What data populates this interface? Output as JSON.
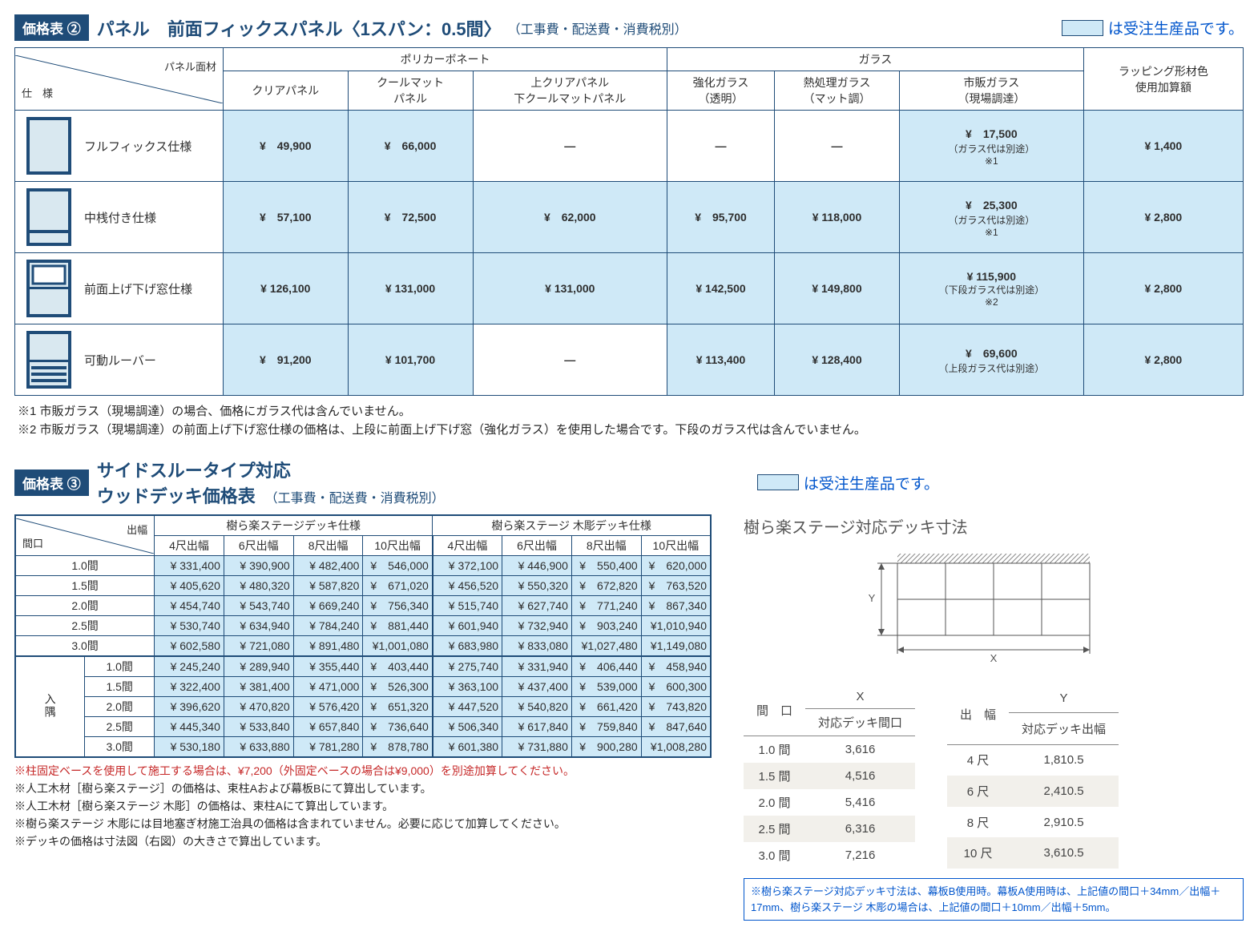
{
  "colors": {
    "primary": "#1f4c78",
    "bto_bg": "#cfe9f7",
    "link_blue": "#0055cc",
    "red": "#c62828",
    "legend_text": "は受注生産品です。"
  },
  "t1": {
    "badge": "価格表 ②",
    "title": "パネル　前面フィックスパネル〈1スパン：0.5間〉",
    "sub": "（工事費・配送費・消費税別）",
    "corner_top": "パネル面材",
    "corner_bottom": "仕　様",
    "group1": "ポリカーボネート",
    "group2": "ガラス",
    "wrap_col": "ラッピング形材色\n使用加算額",
    "cols": [
      "クリアパネル",
      "クールマット\nパネル",
      "上クリアパネル\n下クールマットパネル",
      "強化ガラス\n（透明）",
      "熱処理ガラス\n（マット調）",
      "市販ガラス\n（現場調達）"
    ],
    "rows": [
      {
        "spec": "フルフィックス仕様",
        "icon": "full",
        "cells": [
          "¥　49,900",
          "¥　66,000",
          "—",
          "—",
          "—",
          {
            "main": "¥　17,500",
            "sub": "（ガラス代は別途）\n※1"
          },
          "¥ 1,400"
        ],
        "bto": [
          true,
          true,
          false,
          false,
          false,
          true,
          true
        ]
      },
      {
        "spec": "中桟付き仕様",
        "icon": "midrail",
        "cells": [
          "¥　57,100",
          "¥　72,500",
          "¥　62,000",
          "¥　95,700",
          "¥ 118,000",
          {
            "main": "¥　25,300",
            "sub": "（ガラス代は別途）\n※1"
          },
          "¥ 2,800"
        ],
        "bto": [
          true,
          true,
          true,
          true,
          true,
          true,
          true
        ]
      },
      {
        "spec": "前面上げ下げ窓仕様",
        "icon": "sash",
        "cells": [
          "¥ 126,100",
          "¥ 131,000",
          "¥ 131,000",
          "¥ 142,500",
          "¥ 149,800",
          {
            "main": "¥ 115,900",
            "sub": "（下段ガラス代は別途）\n※2"
          },
          "¥ 2,800"
        ],
        "bto": [
          true,
          true,
          true,
          true,
          true,
          true,
          true
        ]
      },
      {
        "spec": "可動ルーバー",
        "icon": "louver",
        "cells": [
          "¥　91,200",
          "¥ 101,700",
          "—",
          "¥ 113,400",
          "¥ 128,400",
          {
            "main": "¥　69,600",
            "sub": "（上段ガラス代は別途）"
          },
          "¥ 2,800"
        ],
        "bto": [
          true,
          true,
          false,
          true,
          true,
          true,
          true
        ]
      }
    ],
    "foot1": "※1 市販ガラス（現場調達）の場合、価格にガラス代は含んでいません。",
    "foot2": "※2 市販ガラス（現場調達）の前面上げ下げ窓仕様の価格は、上段に前面上げ下げ窓（強化ガラス）を使用した場合です。下段のガラス代は含んでいません。"
  },
  "t2": {
    "badge": "価格表 ③",
    "title_l1": "サイドスルータイプ対応",
    "title_l2": "ウッドデッキ価格表",
    "sub": "（工事費・配送費・消費税別）",
    "corner_top": "出幅",
    "corner_bottom": "間口",
    "group1": "樹ら楽ステージデッキ仕様",
    "group2": "樹ら楽ステージ 木彫デッキ仕様",
    "cols": [
      "4尺出幅",
      "6尺出幅",
      "8尺出幅",
      "10尺出幅",
      "4尺出幅",
      "6尺出幅",
      "8尺出幅",
      "10尺出幅"
    ],
    "rowlabels_a": [
      "1.0間",
      "1.5間",
      "2.0間",
      "2.5間",
      "3.0間"
    ],
    "rowgroup_b": "入隅",
    "rowlabels_b": [
      "1.0間",
      "1.5間",
      "2.0間",
      "2.5間",
      "3.0間"
    ],
    "rows_a": [
      [
        "¥ 331,400",
        "¥ 390,900",
        "¥ 482,400",
        "¥　546,000",
        "¥ 372,100",
        "¥ 446,900",
        "¥　550,400",
        "¥　620,000"
      ],
      [
        "¥ 405,620",
        "¥ 480,320",
        "¥ 587,820",
        "¥　671,020",
        "¥ 456,520",
        "¥ 550,320",
        "¥　672,820",
        "¥　763,520"
      ],
      [
        "¥ 454,740",
        "¥ 543,740",
        "¥ 669,240",
        "¥　756,340",
        "¥ 515,740",
        "¥ 627,740",
        "¥　771,240",
        "¥　867,340"
      ],
      [
        "¥ 530,740",
        "¥ 634,940",
        "¥ 784,240",
        "¥　881,440",
        "¥ 601,940",
        "¥ 732,940",
        "¥　903,240",
        "¥1,010,940"
      ],
      [
        "¥ 602,580",
        "¥ 721,080",
        "¥ 891,480",
        "¥1,001,080",
        "¥ 683,980",
        "¥ 833,080",
        "¥1,027,480",
        "¥1,149,080"
      ]
    ],
    "rows_b": [
      [
        "¥ 245,240",
        "¥ 289,940",
        "¥ 355,440",
        "¥　403,440",
        "¥ 275,740",
        "¥ 331,940",
        "¥　406,440",
        "¥　458,940"
      ],
      [
        "¥ 322,400",
        "¥ 381,400",
        "¥ 471,000",
        "¥　526,300",
        "¥ 363,100",
        "¥ 437,400",
        "¥　539,000",
        "¥　600,300"
      ],
      [
        "¥ 396,620",
        "¥ 470,820",
        "¥ 576,420",
        "¥　651,320",
        "¥ 447,520",
        "¥ 540,820",
        "¥　661,420",
        "¥　743,820"
      ],
      [
        "¥ 445,340",
        "¥ 533,840",
        "¥ 657,840",
        "¥　736,640",
        "¥ 506,340",
        "¥ 617,840",
        "¥　759,840",
        "¥　847,640"
      ],
      [
        "¥ 530,180",
        "¥ 633,880",
        "¥ 781,280",
        "¥　878,780",
        "¥ 601,380",
        "¥ 731,880",
        "¥　900,280",
        "¥1,008,280"
      ]
    ],
    "note_red": "※柱固定ベースを使用して施工する場合は、¥7,200（外固定ベースの場合は¥9,000）を別途加算してください。",
    "notes": [
      "※人工木材［樹ら楽ステージ］の価格は、束柱Aおよび幕板Bにて算出しています。",
      "※人工木材［樹ら楽ステージ 木彫］の価格は、束柱Aにて算出しています。",
      "※樹ら楽ステージ 木彫には目地塞ぎ材施工治具の価格は含まれていません。必要に応じて加算してください。",
      "※デッキの価格は寸法図（右図）の大きさで算出しています。"
    ]
  },
  "dim": {
    "title": "樹ら楽ステージ対応デッキ寸法",
    "x_label": "X",
    "y_label": "Y",
    "t1_head1": "間　口",
    "t1_head2a": "X",
    "t1_head2b": "対応デッキ間口",
    "t1_rows": [
      [
        "1.0 間",
        "3,616"
      ],
      [
        "1.5 間",
        "4,516"
      ],
      [
        "2.0 間",
        "5,416"
      ],
      [
        "2.5 間",
        "6,316"
      ],
      [
        "3.0 間",
        "7,216"
      ]
    ],
    "t2_head1": "出　幅",
    "t2_head2a": "Y",
    "t2_head2b": "対応デッキ出幅",
    "t2_rows": [
      [
        "4 尺",
        "1,810.5"
      ],
      [
        "6 尺",
        "2,410.5"
      ],
      [
        "8 尺",
        "2,910.5"
      ],
      [
        "10 尺",
        "3,610.5"
      ]
    ],
    "footnote": "※樹ら楽ステージ対応デッキ寸法は、幕板B使用時。幕板A使用時は、上記値の間口＋34mm／出幅＋17mm、樹ら楽ステージ 木彫の場合は、上記値の間口＋10mm／出幅＋5mm。"
  }
}
